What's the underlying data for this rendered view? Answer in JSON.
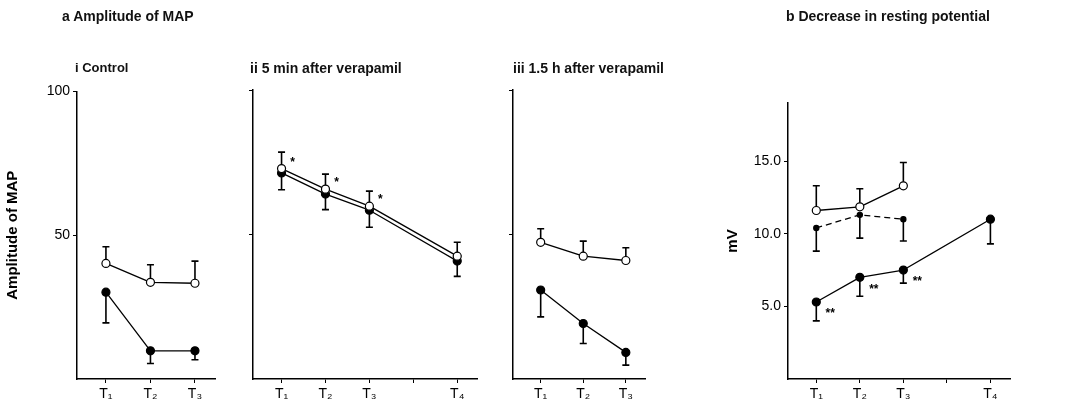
{
  "chart_data": [
    {
      "type": "line",
      "title": "a  Amplitude of MAP",
      "subtitle": "i Control",
      "ylabel": "Amplitude of MAP",
      "categories": [
        "T₁",
        "T₂",
        "T₃"
      ],
      "ylim": [
        0,
        100
      ],
      "yticks": [
        50,
        100
      ],
      "grid": false,
      "legend": false,
      "marker": "circle",
      "line_style": "solid",
      "series": [
        {
          "color": "#ffffff",
          "values": [
            40.2,
            33.6,
            33.3
          ],
          "errors": [
            [
              40.2,
              46
            ],
            [
              33.6,
              39.7
            ],
            [
              33.3,
              41
            ]
          ]
        },
        {
          "color": "#000000",
          "values": [
            30.2,
            9.8,
            9.8
          ],
          "errors": [
            [
              19.5,
              30.2
            ],
            [
              5.4,
              9.8
            ],
            [
              6.7,
              9.8
            ]
          ]
        }
      ]
    },
    {
      "type": "line",
      "title": "ii 5 min after verapamil",
      "categories": [
        "T₁",
        "T₂",
        "T₃",
        null,
        "T₄"
      ],
      "ylim": [
        0,
        100
      ],
      "yticks": [
        {
          "value": 50,
          "label": null
        },
        {
          "value": 100,
          "label": null
        }
      ],
      "tick_labels": "x",
      "grid": false,
      "legend": false,
      "marker": "circle",
      "line_style": "solid",
      "series": [
        {
          "color": "#ffffff",
          "values": [
            72.8,
            65.7,
            59.8,
            null,
            42.5
          ],
          "errors": [
            [
              72.8,
              78.5
            ],
            [
              65.7,
              70.9
            ],
            [
              59.8,
              65
            ],
            null,
            [
              42.5,
              47.3
            ]
          ]
        },
        {
          "color": "#000000",
          "values": [
            71.3,
            64,
            58.4,
            null,
            40.8
          ],
          "errors": [
            [
              65.5,
              71.3
            ],
            [
              58.6,
              64
            ],
            [
              52.5,
              58.4
            ],
            null,
            [
              35.5,
              40.8
            ]
          ]
        }
      ],
      "annotations": [
        {
          "text": "*",
          "x": "T₁",
          "y": 72.8
        },
        {
          "text": "*",
          "x": "T₂",
          "y": 65.7
        },
        {
          "text": "*",
          "x": "T₃",
          "y": 59.8
        }
      ]
    },
    {
      "type": "line",
      "title": "iii 1.5 h after verapamil",
      "categories": [
        "T₁",
        "T₂",
        "T₃"
      ],
      "ylim": [
        0,
        100
      ],
      "yticks": [
        {
          "value": 50,
          "label": null
        },
        {
          "value": 100,
          "label": null
        }
      ],
      "tick_labels": "x",
      "grid": false,
      "legend": false,
      "marker": "circle",
      "line_style": "solid",
      "series": [
        {
          "color": "#ffffff",
          "values": [
            47.3,
            42.5,
            41
          ],
          "errors": [
            [
              47.3,
              52
            ],
            [
              42.5,
              47.7
            ],
            [
              41,
              45.4
            ]
          ]
        },
        {
          "color": "#000000",
          "values": [
            30.8,
            19.2,
            9.2
          ],
          "errors": [
            [
              21.5,
              30.8
            ],
            [
              12.3,
              19.2
            ],
            [
              4.8,
              9.2
            ]
          ]
        }
      ]
    },
    {
      "type": "line",
      "title": "b  Decrease in resting potential",
      "ylabel": "mV",
      "categories": [
        "T₁",
        "T₂",
        "T₃",
        null,
        "T₄"
      ],
      "ylim": [
        0,
        19
      ],
      "yticks": [
        {
          "value": 5,
          "label": "5.0"
        },
        {
          "value": 10,
          "label": "10.0"
        },
        {
          "value": 15,
          "label": "15.0"
        }
      ],
      "grid": false,
      "legend": false,
      "marker": "circle",
      "line_style": "solid",
      "series": [
        {
          "color": "#ffffff",
          "values": [
            11.6,
            11.85,
            13.3,
            null,
            null
          ],
          "errors": [
            [
              11.6,
              13.3
            ],
            [
              11.85,
              13.1
            ],
            [
              13.3,
              14.9
            ],
            null,
            null
          ]
        },
        {
          "color": "#000000",
          "line_style": "dashed",
          "values": [
            10.4,
            11.3,
            11,
            null,
            null
          ],
          "errors": [
            [
              8.8,
              10.4
            ],
            [
              9.7,
              11.3
            ],
            [
              9.5,
              11
            ],
            null,
            null
          ]
        },
        {
          "color": "#000000",
          "values": [
            5.3,
            7,
            7.5,
            null,
            11
          ],
          "errors": [
            [
              4,
              5.3
            ],
            [
              5.7,
              7
            ],
            [
              6.6,
              7.5
            ],
            null,
            [
              9.3,
              11
            ]
          ]
        }
      ],
      "annotations": [
        {
          "text": "**",
          "x": "T₁",
          "y": 5.3
        },
        {
          "text": "**",
          "x": "T₂",
          "y": 7
        },
        {
          "text": "**",
          "x": "T₃",
          "y": 7.5
        }
      ]
    }
  ]
}
